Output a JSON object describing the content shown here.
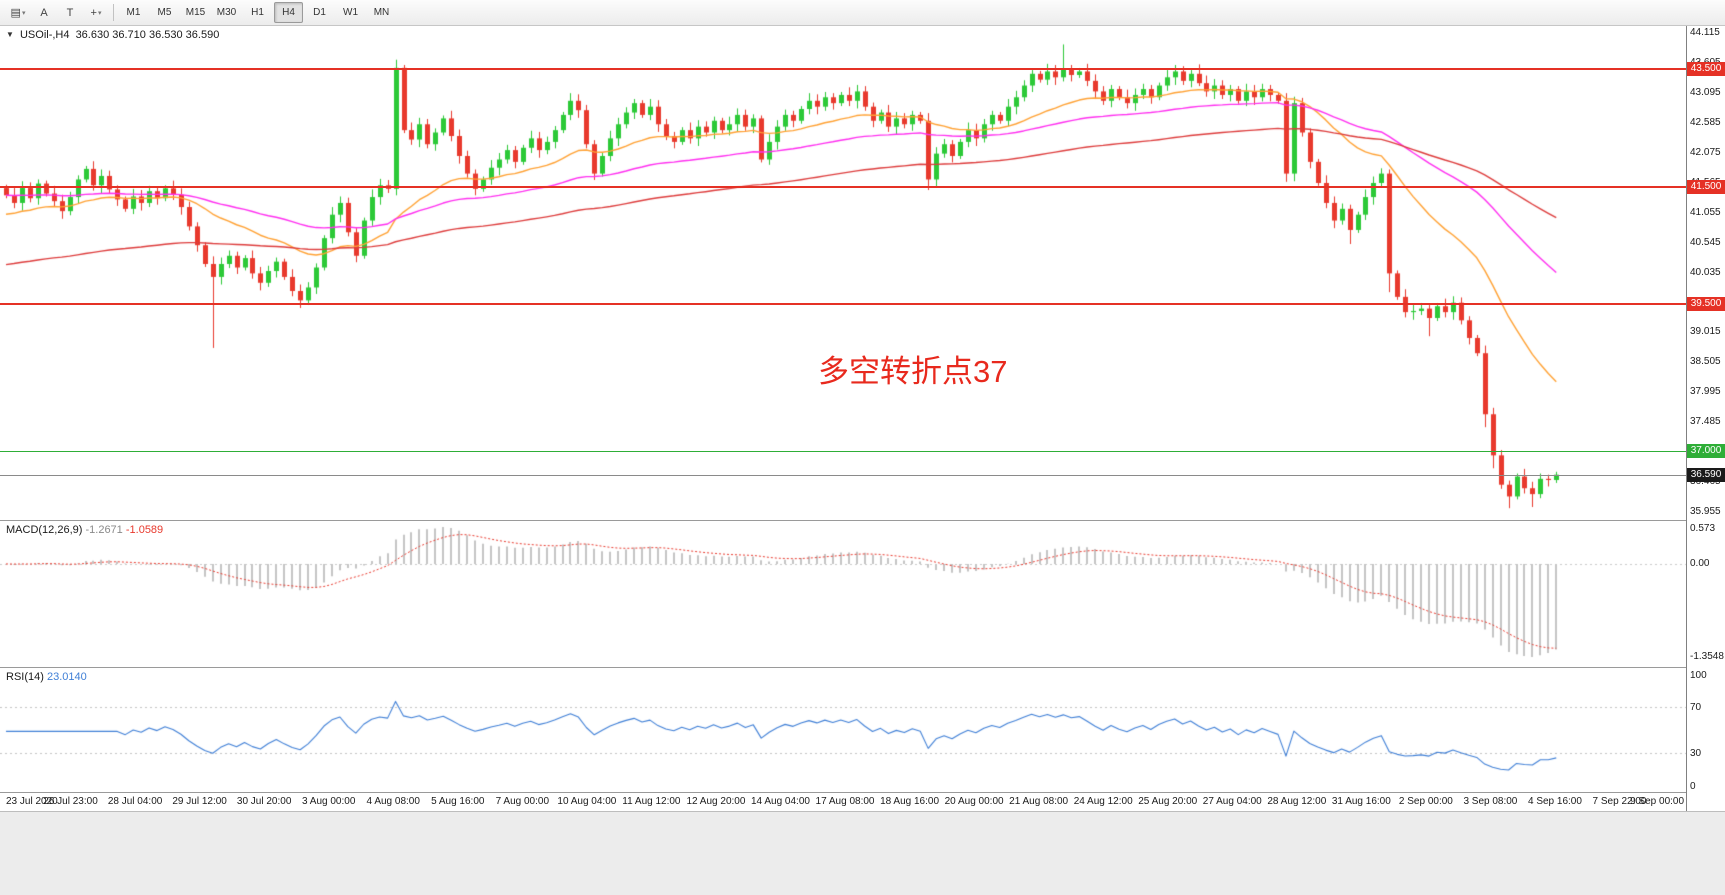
{
  "toolbar": {
    "icon_buttons": [
      {
        "name": "chart-templates-icon",
        "glyph": "▤",
        "caret": true
      },
      {
        "name": "text-annotation-icon",
        "glyph": "A",
        "caret": false
      },
      {
        "name": "text-tool-icon",
        "glyph": "T",
        "caret": false
      },
      {
        "name": "crosshair-tool-icon",
        "glyph": "+",
        "caret": true
      }
    ],
    "timeframes": [
      "M1",
      "M5",
      "M15",
      "M30",
      "H1",
      "H4",
      "D1",
      "W1",
      "MN"
    ],
    "active_timeframe": "H4"
  },
  "header": {
    "collapse_icon": "▼",
    "symbol": "USOil-,H4",
    "ohlc": "36.630 36.710 36.530 36.590"
  },
  "annotation": {
    "text": "多空转折点37",
    "color": "#e8291d"
  },
  "price_axis": {
    "ticks": [
      "44.115",
      "43.605",
      "43.095",
      "42.585",
      "42.075",
      "41.565",
      "41.055",
      "40.545",
      "40.035",
      "39.525",
      "39.015",
      "38.505",
      "37.995",
      "37.485",
      "36.975",
      "36.465",
      "35.955"
    ]
  },
  "levels": [
    {
      "price": 43.5,
      "label": "43.500",
      "color": "#e53125",
      "thickness": 2
    },
    {
      "price": 41.5,
      "label": "41.500",
      "color": "#e53125",
      "thickness": 2
    },
    {
      "price": 39.5,
      "label": "39.500",
      "color": "#e53125",
      "thickness": 2
    },
    {
      "price": 37.0,
      "label": "37.000",
      "color": "#2eae37",
      "thickness": 1
    }
  ],
  "current_price": {
    "value": 36.59,
    "label": "36.590",
    "box_color": "#1a1a1a"
  },
  "time_axis": [
    "23 Jul 2020",
    "26 Jul 23:00",
    "28 Jul 04:00",
    "29 Jul 12:00",
    "30 Jul 20:00",
    "3 Aug 00:00",
    "4 Aug 08:00",
    "5 Aug 16:00",
    "7 Aug 00:00",
    "10 Aug 04:00",
    "11 Aug 12:00",
    "12 Aug 20:00",
    "14 Aug 04:00",
    "17 Aug 08:00",
    "18 Aug 16:00",
    "20 Aug 00:00",
    "21 Aug 08:00",
    "24 Aug 12:00",
    "25 Aug 20:00",
    "27 Aug 04:00",
    "28 Aug 12:00",
    "31 Aug 16:00",
    "2 Sep 00:00",
    "3 Sep 08:00",
    "4 Sep 16:00",
    "7 Sep 22:00",
    "9 Sep 00:00"
  ],
  "macd_panel": {
    "name": "MACD(12,26,9)",
    "value_main": "-1.2671",
    "value_signal": "-1.0589",
    "axis_labels": [
      "0.573",
      "0.00",
      "-1.3548"
    ]
  },
  "rsi_panel": {
    "name": "RSI(14)",
    "value": "23.0140",
    "axis_labels": [
      "100",
      "70",
      "30",
      "0"
    ],
    "level_values": [
      70,
      30
    ]
  },
  "chart_data": {
    "type": "candlestick",
    "symbol": "USOil-",
    "timeframe": "H4",
    "price_range": [
      35.955,
      44.115
    ],
    "up_color": "#2cc937",
    "down_color": "#e8392d",
    "first_open": 41.48,
    "closes": [
      41.35,
      41.22,
      41.48,
      41.3,
      41.55,
      41.38,
      41.25,
      41.08,
      41.32,
      41.62,
      41.8,
      41.52,
      41.68,
      41.45,
      41.28,
      41.12,
      41.33,
      41.22,
      41.42,
      41.3,
      41.47,
      41.36,
      41.15,
      40.82,
      40.5,
      40.18,
      39.96,
      40.18,
      40.32,
      40.12,
      40.28,
      40.02,
      39.86,
      40.06,
      40.22,
      39.96,
      39.72,
      39.56,
      39.78,
      40.12,
      40.62,
      41.02,
      41.22,
      40.72,
      40.32,
      40.92,
      41.32,
      41.52,
      41.46,
      43.52,
      42.46,
      42.3,
      42.56,
      42.22,
      42.42,
      42.66,
      42.36,
      42.02,
      41.72,
      41.46,
      41.62,
      41.82,
      41.96,
      42.12,
      41.92,
      42.16,
      42.32,
      42.12,
      42.26,
      42.46,
      42.72,
      42.96,
      42.8,
      42.22,
      41.72,
      42.02,
      42.32,
      42.56,
      42.76,
      42.92,
      42.72,
      42.86,
      42.56,
      42.36,
      42.26,
      42.46,
      42.32,
      42.52,
      42.42,
      42.62,
      42.46,
      42.56,
      42.72,
      42.52,
      42.66,
      41.96,
      42.26,
      42.52,
      42.72,
      42.62,
      42.82,
      42.96,
      42.86,
      43.02,
      42.92,
      43.06,
      42.96,
      43.12,
      42.86,
      42.62,
      42.76,
      42.52,
      42.66,
      42.56,
      42.72,
      42.62,
      41.62,
      42.06,
      42.22,
      42.02,
      42.26,
      42.46,
      42.32,
      42.56,
      42.72,
      42.62,
      42.86,
      43.02,
      43.22,
      43.42,
      43.32,
      43.46,
      43.36,
      43.5,
      43.4,
      43.46,
      43.3,
      43.12,
      42.96,
      43.16,
      43.02,
      42.92,
      43.06,
      43.16,
      43.02,
      43.22,
      43.36,
      43.46,
      43.3,
      43.42,
      43.26,
      43.12,
      43.22,
      43.06,
      43.16,
      42.96,
      43.12,
      43.02,
      43.16,
      43.06,
      42.96,
      41.72,
      42.92,
      42.42,
      41.92,
      41.56,
      41.22,
      40.92,
      41.12,
      40.76,
      41.02,
      41.32,
      41.56,
      41.72,
      40.02,
      39.62,
      39.36,
      39.38,
      39.42,
      39.26,
      39.46,
      39.36,
      39.52,
      39.22,
      38.92,
      38.66,
      37.62,
      36.92,
      36.42,
      36.22,
      36.56,
      36.36,
      36.26,
      36.52,
      36.5,
      36.59
    ],
    "wick_overrides": {
      "26": {
        "low": 38.75
      },
      "49": {
        "high": 43.66
      },
      "116": {
        "low": 41.44
      },
      "133": {
        "high": 43.92
      },
      "150": {
        "high": 43.58
      },
      "161": {
        "low": 41.58
      },
      "169": {
        "low": 40.52
      },
      "174": {
        "low": 39.7
      },
      "179": {
        "low": 38.95
      },
      "186": {
        "low": 37.4
      },
      "187": {
        "low": 36.7
      },
      "189": {
        "low": 36.02
      },
      "192": {
        "low": 36.04
      }
    },
    "moving_averages": [
      {
        "period": 24,
        "color": "#ffa133",
        "seed": 41.0
      },
      {
        "period": 60,
        "color": "#ff2ef0",
        "seed": 41.35
      },
      {
        "period": 120,
        "color": "#dd3c3c",
        "seed": 40.15
      }
    ],
    "macd": {
      "fast": 12,
      "slow": 26,
      "signal": 9,
      "histogram_color": "#c4c4c4",
      "signal_color": "#e8392d"
    },
    "rsi": {
      "period": 14,
      "color": "#3f7fd6"
    }
  }
}
